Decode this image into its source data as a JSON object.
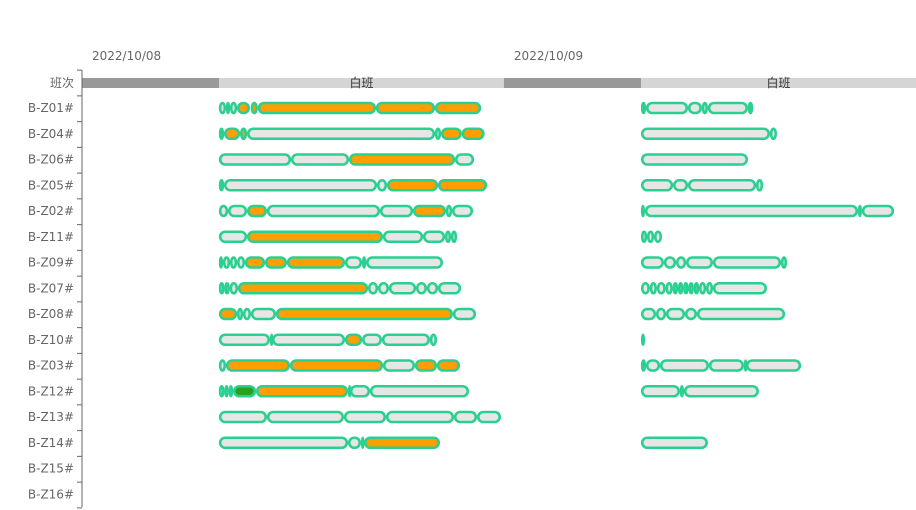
{
  "chart_data": {
    "type": "gantt",
    "x_unit": "hours from 2022/10/08 00:00",
    "x_range": [
      0,
      47.44
    ],
    "date_labels": [
      {
        "label": "2022/10/08",
        "hour": 0
      },
      {
        "label": "2022/10/09",
        "hour": 24
      }
    ],
    "shift_row_label": "班次",
    "shifts": [
      {
        "label": "",
        "start": 0,
        "end": 7.8,
        "kind": "gap"
      },
      {
        "label": "白班",
        "start": 7.8,
        "end": 24,
        "kind": "shift"
      },
      {
        "label": "",
        "start": 24,
        "end": 31.8,
        "kind": "gap"
      },
      {
        "label": "白班",
        "start": 31.8,
        "end": 47.44,
        "kind": "shift"
      }
    ],
    "colors": {
      "border": "#2bd091",
      "idle": "#e6e6e6",
      "run": "#ff9e00",
      "green": "#2f9e1a",
      "gap": "#999999",
      "shift": "#d5d5d5",
      "axis": "#666666"
    },
    "rows": [
      {
        "label": "B-Z01#",
        "segments": [
          [
            7.79,
            8.19,
            "idle"
          ],
          [
            8.19,
            8.42,
            "idle"
          ],
          [
            8.42,
            8.82,
            "idle"
          ],
          [
            8.82,
            9.55,
            "run"
          ],
          [
            9.6,
            10.0,
            "run"
          ],
          [
            10.0,
            16.72,
            "run"
          ],
          [
            16.72,
            20.08,
            "run"
          ],
          [
            20.08,
            22.7,
            "run"
          ],
          [
            31.8,
            32.08,
            "idle"
          ],
          [
            32.08,
            34.47,
            "idle"
          ],
          [
            34.47,
            35.26,
            "idle"
          ],
          [
            35.26,
            35.6,
            "idle"
          ],
          [
            35.6,
            37.88,
            "idle"
          ],
          [
            37.88,
            38.17,
            "idle"
          ]
        ]
      },
      {
        "label": "B-Z04#",
        "segments": [
          [
            7.79,
            8.08,
            "idle"
          ],
          [
            8.08,
            8.99,
            "run"
          ],
          [
            8.99,
            9.39,
            "run"
          ],
          [
            9.39,
            20.08,
            "idle"
          ],
          [
            20.08,
            20.42,
            "idle"
          ],
          [
            20.42,
            21.6,
            "run"
          ],
          [
            21.6,
            22.9,
            "run"
          ],
          [
            31.8,
            39.13,
            "idle"
          ],
          [
            39.13,
            39.53,
            "idle"
          ]
        ]
      },
      {
        "label": "B-Z06#",
        "segments": [
          [
            7.79,
            11.89,
            "idle"
          ],
          [
            11.89,
            15.19,
            "idle"
          ],
          [
            15.19,
            21.22,
            "run"
          ],
          [
            21.22,
            22.3,
            "idle"
          ],
          [
            31.8,
            37.88,
            "idle"
          ]
        ]
      },
      {
        "label": "B-Z05#",
        "segments": [
          [
            7.79,
            8.08,
            "idle"
          ],
          [
            8.08,
            16.78,
            "idle"
          ],
          [
            16.78,
            17.35,
            "idle"
          ],
          [
            17.35,
            20.25,
            "run"
          ],
          [
            20.25,
            23.04,
            "run"
          ],
          [
            31.8,
            33.62,
            "idle"
          ],
          [
            33.62,
            34.47,
            "idle"
          ],
          [
            34.47,
            38.34,
            "idle"
          ],
          [
            38.34,
            38.74,
            "idle"
          ]
        ]
      },
      {
        "label": "B-Z02#",
        "segments": [
          [
            7.79,
            8.31,
            "idle"
          ],
          [
            8.31,
            9.39,
            "idle"
          ],
          [
            9.39,
            10.52,
            "run"
          ],
          [
            10.52,
            16.95,
            "idle"
          ],
          [
            16.95,
            18.83,
            "idle"
          ],
          [
            18.83,
            20.7,
            "run"
          ],
          [
            20.7,
            21.05,
            "idle"
          ],
          [
            21.05,
            22.24,
            "idle"
          ],
          [
            31.8,
            32.02,
            "idle"
          ],
          [
            32.02,
            44.14,
            "idle"
          ],
          [
            44.14,
            44.36,
            "idle"
          ],
          [
            44.36,
            46.19,
            "idle"
          ]
        ]
      },
      {
        "label": "B-Z11#",
        "segments": [
          [
            7.79,
            9.39,
            "idle"
          ],
          [
            9.39,
            17.12,
            "run"
          ],
          [
            17.12,
            19.4,
            "idle"
          ],
          [
            19.4,
            20.65,
            "idle"
          ],
          [
            20.65,
            20.99,
            "idle"
          ],
          [
            20.99,
            21.33,
            "idle"
          ],
          [
            31.8,
            32.14,
            "idle"
          ],
          [
            32.14,
            32.54,
            "idle"
          ],
          [
            32.54,
            32.99,
            "idle"
          ]
        ]
      },
      {
        "label": "B-Z09#",
        "segments": [
          [
            7.79,
            8.02,
            "idle"
          ],
          [
            8.02,
            8.42,
            "idle"
          ],
          [
            8.42,
            8.82,
            "idle"
          ],
          [
            8.82,
            9.27,
            "idle"
          ],
          [
            9.27,
            10.41,
            "run"
          ],
          [
            10.41,
            11.66,
            "run"
          ],
          [
            11.66,
            14.96,
            "run"
          ],
          [
            14.96,
            15.93,
            "idle"
          ],
          [
            15.93,
            16.16,
            "idle"
          ],
          [
            16.16,
            20.53,
            "idle"
          ],
          [
            31.8,
            33.1,
            "idle"
          ],
          [
            33.1,
            33.79,
            "idle"
          ],
          [
            33.79,
            34.36,
            "idle"
          ],
          [
            34.36,
            35.89,
            "idle"
          ],
          [
            35.89,
            39.76,
            "idle"
          ],
          [
            39.76,
            40.1,
            "idle"
          ]
        ]
      },
      {
        "label": "B-Z07#",
        "segments": [
          [
            7.79,
            8.1,
            "idle"
          ],
          [
            8.1,
            8.4,
            "idle"
          ],
          [
            8.4,
            8.87,
            "idle"
          ],
          [
            8.87,
            16.27,
            "run"
          ],
          [
            16.27,
            16.84,
            "idle"
          ],
          [
            16.84,
            17.46,
            "idle"
          ],
          [
            17.46,
            19.0,
            "idle"
          ],
          [
            19.0,
            19.62,
            "idle"
          ],
          [
            19.62,
            20.25,
            "idle"
          ],
          [
            20.25,
            21.56,
            "idle"
          ],
          [
            31.8,
            32.3,
            "idle"
          ],
          [
            32.3,
            32.7,
            "idle"
          ],
          [
            32.7,
            33.2,
            "idle"
          ],
          [
            33.2,
            33.6,
            "idle"
          ],
          [
            33.6,
            33.9,
            "idle"
          ],
          [
            33.9,
            34.2,
            "idle"
          ],
          [
            34.2,
            34.5,
            "idle"
          ],
          [
            34.5,
            34.8,
            "idle"
          ],
          [
            34.8,
            35.1,
            "idle"
          ],
          [
            35.1,
            35.5,
            "idle"
          ],
          [
            35.5,
            35.89,
            "idle"
          ],
          [
            35.89,
            38.96,
            "idle"
          ]
        ]
      },
      {
        "label": "B-Z08#",
        "segments": [
          [
            7.79,
            8.82,
            "run"
          ],
          [
            8.82,
            9.16,
            "idle"
          ],
          [
            9.16,
            9.61,
            "idle"
          ],
          [
            9.61,
            11.03,
            "idle"
          ],
          [
            11.03,
            21.1,
            "run"
          ],
          [
            21.1,
            22.41,
            "idle"
          ],
          [
            31.8,
            32.65,
            "idle"
          ],
          [
            32.65,
            33.22,
            "idle"
          ],
          [
            33.22,
            34.3,
            "idle"
          ],
          [
            34.3,
            34.98,
            "idle"
          ],
          [
            34.98,
            39.99,
            "idle"
          ]
        ]
      },
      {
        "label": "B-Z10#",
        "segments": [
          [
            7.79,
            10.69,
            "idle"
          ],
          [
            10.69,
            10.81,
            "idle"
          ],
          [
            10.81,
            14.96,
            "idle"
          ],
          [
            14.96,
            15.93,
            "run"
          ],
          [
            15.93,
            17.06,
            "idle"
          ],
          [
            17.06,
            19.79,
            "idle"
          ],
          [
            19.79,
            20.19,
            "idle"
          ],
          [
            31.8,
            32.02,
            "idle"
          ]
        ]
      },
      {
        "label": "B-Z03#",
        "segments": [
          [
            7.79,
            8.19,
            "idle"
          ],
          [
            8.19,
            11.83,
            "run"
          ],
          [
            11.83,
            17.12,
            "run"
          ],
          [
            17.12,
            18.94,
            "idle"
          ],
          [
            18.94,
            20.19,
            "run"
          ],
          [
            20.19,
            21.5,
            "run"
          ],
          [
            31.8,
            32.08,
            "idle"
          ],
          [
            32.08,
            32.88,
            "idle"
          ],
          [
            32.88,
            35.66,
            "idle"
          ],
          [
            35.66,
            37.65,
            "idle"
          ],
          [
            37.65,
            37.77,
            "idle"
          ],
          [
            37.77,
            40.9,
            "idle"
          ]
        ]
      },
      {
        "label": "B-Z12#",
        "segments": [
          [
            7.79,
            8.1,
            "idle"
          ],
          [
            8.1,
            8.35,
            "idle"
          ],
          [
            8.35,
            8.59,
            "idle"
          ],
          [
            8.59,
            9.9,
            "green"
          ],
          [
            9.9,
            15.13,
            "run"
          ],
          [
            15.13,
            15.24,
            "idle"
          ],
          [
            15.24,
            16.38,
            "idle"
          ],
          [
            16.38,
            22.01,
            "idle"
          ],
          [
            31.8,
            34.01,
            "idle"
          ],
          [
            34.01,
            34.24,
            "idle"
          ],
          [
            34.24,
            38.5,
            "idle"
          ]
        ]
      },
      {
        "label": "B-Z13#",
        "segments": [
          [
            7.79,
            10.52,
            "idle"
          ],
          [
            10.52,
            14.9,
            "idle"
          ],
          [
            14.9,
            17.29,
            "idle"
          ],
          [
            17.29,
            21.16,
            "idle"
          ],
          [
            21.16,
            22.47,
            "idle"
          ],
          [
            22.47,
            23.83,
            "idle"
          ]
        ]
      },
      {
        "label": "B-Z14#",
        "segments": [
          [
            7.79,
            15.13,
            "idle"
          ],
          [
            15.13,
            15.87,
            "idle"
          ],
          [
            15.87,
            16.04,
            "idle"
          ],
          [
            16.04,
            20.36,
            "run"
          ],
          [
            31.8,
            35.6,
            "idle"
          ]
        ]
      },
      {
        "label": "B-Z15#",
        "segments": []
      },
      {
        "label": "B-Z16#",
        "segments": []
      }
    ]
  }
}
